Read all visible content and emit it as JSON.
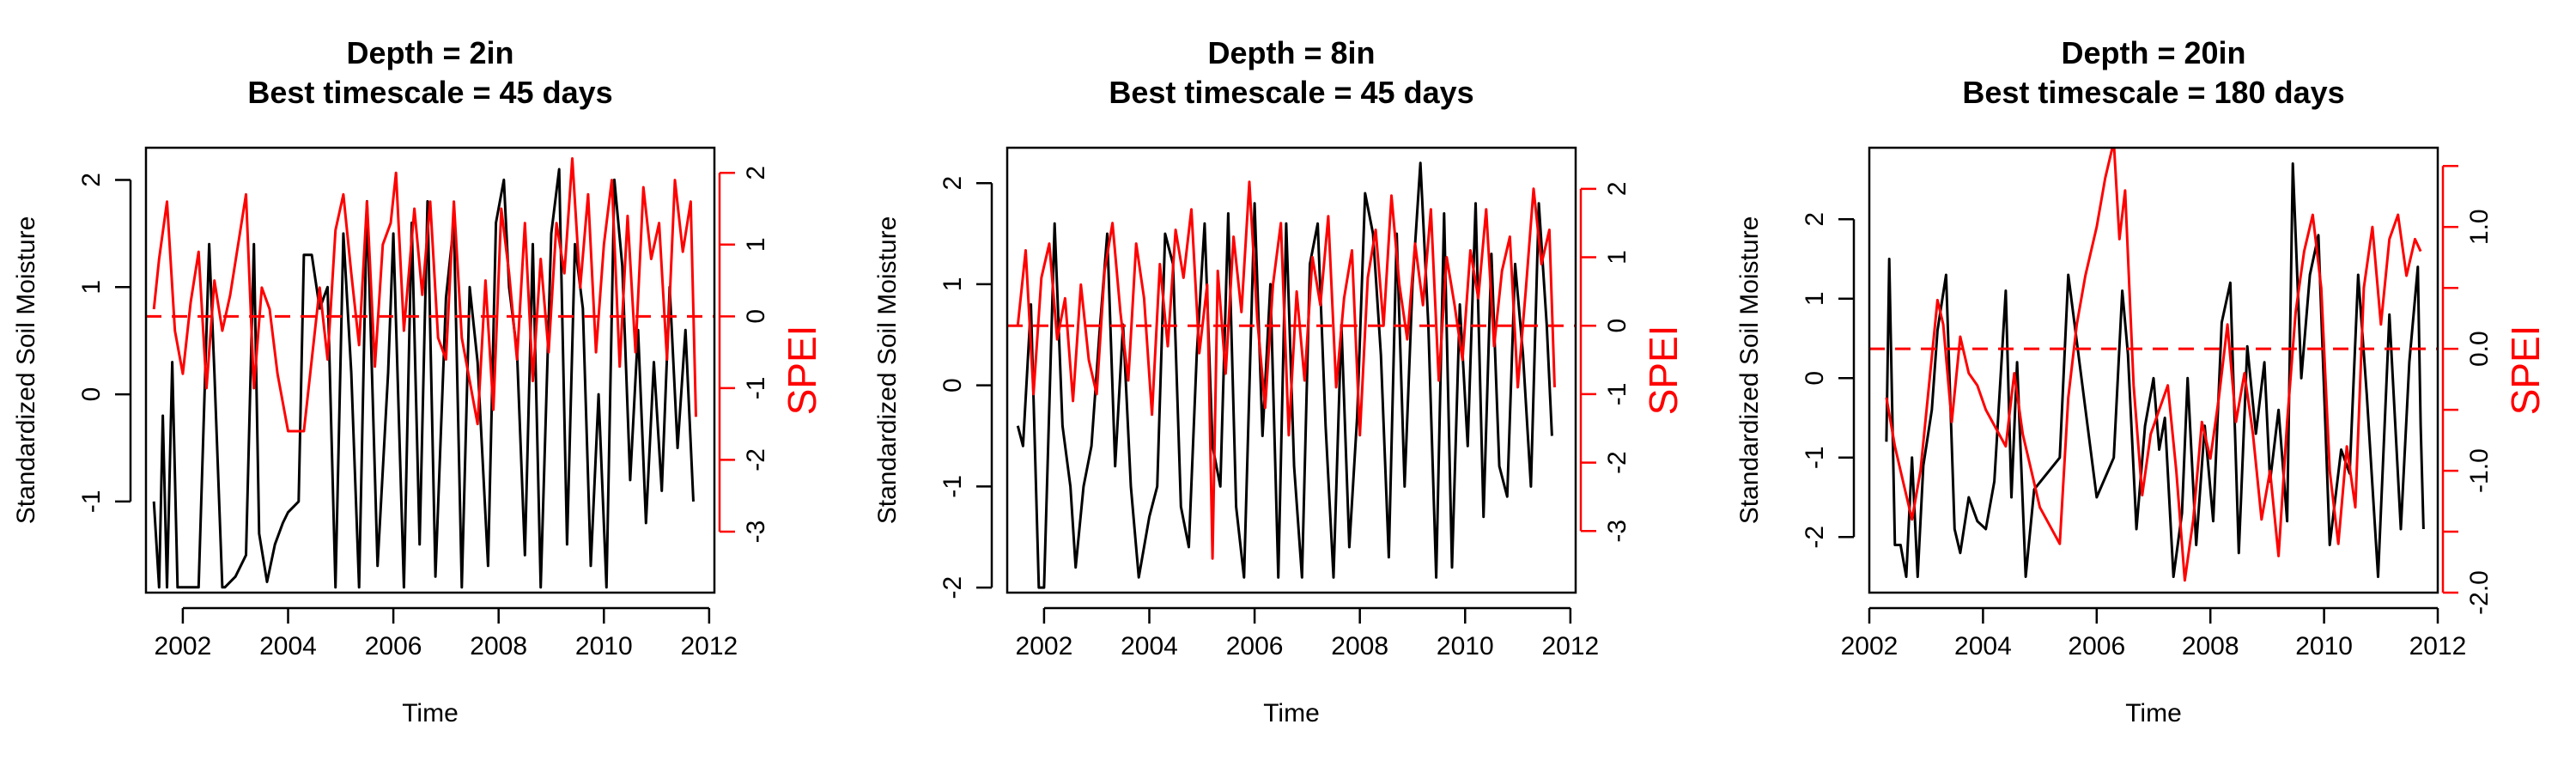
{
  "chart_data": [
    {
      "type": "line",
      "title": "Depth = 2in",
      "subtitle": "Best timescale = 45 days",
      "xlabel": "Time",
      "ylabel": "Standardized Soil Moisture",
      "y2label": "SPEI",
      "xlim": [
        2001.3,
        2012.1
      ],
      "ylim": [
        -1.85,
        2.3
      ],
      "y2lim": [
        -3.85,
        2.35
      ],
      "xticks": [
        2002,
        2004,
        2006,
        2008,
        2010,
        2012
      ],
      "yticks": [
        -1,
        0,
        1,
        2
      ],
      "y2ticks": [
        -3,
        -2,
        -1,
        0,
        1,
        2
      ],
      "hline_y2": 0,
      "colors": {
        "soil": "#000000",
        "spei": "#ff0000"
      },
      "series": [
        {
          "role": "soil",
          "x": [
            2001.45,
            2001.55,
            2001.62,
            2001.7,
            2001.8,
            2001.9,
            2002.0,
            2002.3,
            2002.5,
            2002.6,
            2002.75,
            2002.8,
            2003.0,
            2003.2,
            2003.35,
            2003.45,
            2003.6,
            2003.75,
            2003.9,
            2004.0,
            2004.2,
            2004.3,
            2004.45,
            2004.6,
            2004.75,
            2004.9,
            2005.05,
            2005.2,
            2005.35,
            2005.5,
            2005.7,
            2005.9,
            2006.0,
            2006.2,
            2006.35,
            2006.5,
            2006.65,
            2006.8,
            2007.0,
            2007.15,
            2007.3,
            2007.45,
            2007.6,
            2007.8,
            2007.95,
            2008.1,
            2008.2,
            2008.35,
            2008.5,
            2008.65,
            2008.8,
            2009.0,
            2009.15,
            2009.3,
            2009.45,
            2009.6,
            2009.75,
            2009.9,
            2010.05,
            2010.2,
            2010.35,
            2010.5,
            2010.65,
            2010.8,
            2010.95,
            2011.1,
            2011.25,
            2011.4,
            2011.55,
            2011.7
          ],
          "y": [
            -1.0,
            -1.8,
            -0.2,
            -1.8,
            0.3,
            -1.8,
            -1.8,
            -1.8,
            1.4,
            0.2,
            -1.8,
            -1.8,
            -1.7,
            -1.5,
            1.4,
            -1.3,
            -1.75,
            -1.4,
            -1.2,
            -1.1,
            -1.0,
            1.3,
            1.3,
            0.8,
            1.0,
            -1.8,
            1.5,
            0.2,
            -1.8,
            1.8,
            -1.6,
            0.2,
            1.5,
            -1.8,
            1.6,
            -1.4,
            1.8,
            -1.7,
            0.9,
            1.6,
            -1.8,
            1.0,
            0.3,
            -1.6,
            1.6,
            2.0,
            1.0,
            0.4,
            -1.5,
            1.4,
            -1.8,
            1.5,
            2.1,
            -1.4,
            1.4,
            0.8,
            -1.6,
            0.0,
            -1.8,
            2.0,
            1.2,
            -0.8,
            0.6,
            -1.2,
            0.3,
            -0.9,
            1.0,
            -0.5,
            0.6,
            -1.0
          ]
        },
        {
          "role": "spei",
          "x": [
            2001.45,
            2001.55,
            2001.7,
            2001.85,
            2002.0,
            2002.15,
            2002.3,
            2002.45,
            2002.6,
            2002.75,
            2002.9,
            2003.05,
            2003.2,
            2003.35,
            2003.5,
            2003.65,
            2003.8,
            2004.0,
            2004.3,
            2004.6,
            2004.75,
            2004.9,
            2005.05,
            2005.2,
            2005.35,
            2005.5,
            2005.65,
            2005.8,
            2005.95,
            2006.05,
            2006.2,
            2006.4,
            2006.55,
            2006.7,
            2006.85,
            2007.0,
            2007.15,
            2007.3,
            2007.45,
            2007.6,
            2007.75,
            2007.9,
            2008.05,
            2008.2,
            2008.35,
            2008.5,
            2008.65,
            2008.8,
            2008.95,
            2009.1,
            2009.25,
            2009.4,
            2009.55,
            2009.7,
            2009.85,
            2010.0,
            2010.15,
            2010.3,
            2010.45,
            2010.6,
            2010.75,
            2010.9,
            2011.05,
            2011.2,
            2011.35,
            2011.5,
            2011.65,
            2011.75
          ],
          "y": [
            0.1,
            0.8,
            1.6,
            -0.2,
            -0.8,
            0.2,
            0.9,
            -1.0,
            0.5,
            -0.2,
            0.3,
            1.0,
            1.7,
            -1.0,
            0.4,
            0.1,
            -0.8,
            -1.6,
            -1.6,
            0.4,
            -0.6,
            1.2,
            1.7,
            0.6,
            -0.4,
            1.6,
            -0.7,
            1.0,
            1.3,
            2.0,
            -0.2,
            1.5,
            0.3,
            1.6,
            -0.3,
            -0.6,
            1.6,
            -0.3,
            -0.9,
            -1.5,
            0.5,
            -1.3,
            1.5,
            0.6,
            -0.6,
            1.3,
            -0.9,
            0.8,
            -0.5,
            1.3,
            0.6,
            2.2,
            0.4,
            1.7,
            -0.5,
            1.0,
            1.9,
            -0.7,
            1.4,
            -0.5,
            1.8,
            0.8,
            1.3,
            -0.6,
            1.9,
            0.9,
            1.6,
            -1.4
          ]
        }
      ]
    },
    {
      "type": "line",
      "title": "Depth = 8in",
      "subtitle": "Best timescale = 45 days",
      "xlabel": "Time",
      "ylabel": "Standardized Soil Moisture",
      "y2label": "SPEI",
      "xlim": [
        2001.3,
        2012.1
      ],
      "ylim": [
        -2.05,
        2.35
      ],
      "y2lim": [
        -3.9,
        2.6
      ],
      "xticks": [
        2002,
        2004,
        2006,
        2008,
        2010,
        2012
      ],
      "yticks": [
        -2,
        -1,
        0,
        1,
        2
      ],
      "y2ticks": [
        -3,
        -2,
        -1,
        0,
        1,
        2
      ],
      "hline_y2": 0,
      "colors": {
        "soil": "#000000",
        "spei": "#ff0000"
      },
      "series": [
        {
          "role": "soil",
          "x": [
            2001.5,
            2001.6,
            2001.75,
            2001.9,
            2002.0,
            2002.2,
            2002.35,
            2002.5,
            2002.6,
            2002.75,
            2002.9,
            2003.05,
            2003.2,
            2003.35,
            2003.5,
            2003.65,
            2003.8,
            2004.0,
            2004.15,
            2004.3,
            2004.45,
            2004.6,
            2004.75,
            2004.9,
            2005.05,
            2005.2,
            2005.35,
            2005.5,
            2005.65,
            2005.8,
            2006.0,
            2006.15,
            2006.3,
            2006.45,
            2006.6,
            2006.75,
            2006.9,
            2007.05,
            2007.2,
            2007.35,
            2007.5,
            2007.65,
            2007.8,
            2007.95,
            2008.1,
            2008.25,
            2008.4,
            2008.55,
            2008.7,
            2008.85,
            2009.0,
            2009.15,
            2009.3,
            2009.45,
            2009.6,
            2009.75,
            2009.9,
            2010.05,
            2010.2,
            2010.35,
            2010.5,
            2010.65,
            2010.8,
            2010.95,
            2011.1,
            2011.25,
            2011.4,
            2011.55,
            2011.65
          ],
          "y": [
            -0.4,
            -0.6,
            0.8,
            -2.0,
            -2.0,
            1.6,
            -0.4,
            -1.0,
            -1.8,
            -1.0,
            -0.6,
            0.5,
            1.5,
            -0.8,
            0.6,
            -1.0,
            -1.9,
            -1.3,
            -1.0,
            1.5,
            1.2,
            -1.2,
            -1.6,
            0.3,
            1.6,
            -0.6,
            -1.0,
            1.7,
            -1.2,
            -1.9,
            1.8,
            -0.5,
            1.0,
            -1.9,
            1.6,
            -0.8,
            -1.9,
            1.2,
            1.6,
            -0.4,
            -1.9,
            0.6,
            -1.6,
            -0.3,
            1.9,
            1.5,
            0.3,
            -1.7,
            1.5,
            -1.0,
            1.0,
            2.2,
            0.6,
            -1.9,
            1.7,
            -1.8,
            0.8,
            -0.6,
            1.8,
            -1.3,
            1.3,
            -0.8,
            -1.1,
            1.2,
            0.3,
            -1.0,
            1.8,
            0.6,
            -0.5
          ]
        },
        {
          "role": "spei",
          "x": [
            2001.5,
            2001.65,
            2001.8,
            2001.95,
            2002.1,
            2002.25,
            2002.4,
            2002.55,
            2002.7,
            2002.85,
            2003.0,
            2003.15,
            2003.3,
            2003.45,
            2003.6,
            2003.75,
            2003.9,
            2004.05,
            2004.2,
            2004.35,
            2004.5,
            2004.65,
            2004.8,
            2004.95,
            2005.1,
            2005.2,
            2005.3,
            2005.45,
            2005.6,
            2005.75,
            2005.9,
            2006.05,
            2006.2,
            2006.35,
            2006.5,
            2006.65,
            2006.8,
            2006.95,
            2007.1,
            2007.25,
            2007.4,
            2007.55,
            2007.7,
            2007.85,
            2008.0,
            2008.15,
            2008.3,
            2008.45,
            2008.6,
            2008.75,
            2008.9,
            2009.05,
            2009.2,
            2009.35,
            2009.5,
            2009.65,
            2009.8,
            2009.95,
            2010.1,
            2010.25,
            2010.4,
            2010.55,
            2010.7,
            2010.85,
            2011.0,
            2011.15,
            2011.3,
            2011.45,
            2011.6,
            2011.7
          ],
          "y": [
            0.0,
            1.1,
            -1.0,
            0.7,
            1.2,
            -0.2,
            0.4,
            -1.1,
            0.6,
            -0.5,
            -1.0,
            0.8,
            1.5,
            0.2,
            -0.8,
            1.2,
            0.4,
            -1.3,
            0.9,
            -0.3,
            1.4,
            0.7,
            1.7,
            -0.4,
            0.6,
            -3.4,
            0.8,
            -0.7,
            1.3,
            0.2,
            2.1,
            0.1,
            -1.2,
            0.6,
            1.5,
            -1.6,
            0.5,
            -0.8,
            1.0,
            0.3,
            1.6,
            -0.9,
            0.4,
            1.1,
            -1.6,
            0.7,
            1.4,
            0.0,
            1.9,
            0.6,
            -0.2,
            1.2,
            0.3,
            1.7,
            -0.8,
            1.0,
            0.3,
            -0.5,
            1.1,
            0.4,
            1.7,
            -0.3,
            0.8,
            1.3,
            -0.9,
            0.5,
            2.0,
            0.9,
            1.4,
            -0.9
          ]
        }
      ]
    },
    {
      "type": "line",
      "title": "Depth = 20in",
      "subtitle": "Best timescale = 180 days",
      "xlabel": "Time",
      "ylabel": "Standardized Soil Moisture",
      "y2label": "SPEI",
      "xlim": [
        2002.0,
        2012.0
      ],
      "ylim": [
        -2.7,
        2.9
      ],
      "y2lim": [
        -2.0,
        1.65
      ],
      "xticks": [
        2002,
        2004,
        2006,
        2008,
        2010,
        2012
      ],
      "yticks": [
        -2,
        -1,
        0,
        1,
        2
      ],
      "y2ticks": [
        -2.0,
        -1.5,
        -1.0,
        -0.5,
        0.0,
        0.5,
        1.0,
        1.5
      ],
      "y2ticklabels": [
        "-2.0",
        "",
        "-1.0",
        "",
        "0.0",
        "",
        "1.0",
        ""
      ],
      "hline_y2": 0,
      "colors": {
        "soil": "#000000",
        "spei": "#ff0000"
      },
      "series": [
        {
          "role": "soil",
          "x": [
            2002.3,
            2002.35,
            2002.45,
            2002.55,
            2002.65,
            2002.75,
            2002.85,
            2002.95,
            2003.1,
            2003.2,
            2003.35,
            2003.5,
            2003.6,
            2003.75,
            2003.9,
            2004.05,
            2004.2,
            2004.4,
            2004.5,
            2004.6,
            2004.75,
            2004.9,
            2005.35,
            2005.5,
            2006.0,
            2006.3,
            2006.45,
            2006.55,
            2006.7,
            2006.85,
            2007.0,
            2007.1,
            2007.2,
            2007.35,
            2007.5,
            2007.6,
            2007.75,
            2007.9,
            2008.05,
            2008.2,
            2008.35,
            2008.5,
            2008.65,
            2008.8,
            2008.95,
            2009.05,
            2009.2,
            2009.35,
            2009.45,
            2009.6,
            2009.75,
            2009.9,
            2010.1,
            2010.3,
            2010.45,
            2010.6,
            2010.75,
            2010.95,
            2011.15,
            2011.35,
            2011.5,
            2011.65,
            2011.7,
            2011.75
          ],
          "y": [
            -0.8,
            1.5,
            -2.1,
            -2.1,
            -2.5,
            -1.0,
            -2.5,
            -1.1,
            -0.4,
            0.6,
            1.3,
            -1.9,
            -2.2,
            -1.5,
            -1.8,
            -1.9,
            -1.3,
            1.1,
            -1.5,
            0.2,
            -2.5,
            -1.4,
            -1.0,
            1.3,
            -1.5,
            -1.0,
            1.1,
            0.3,
            -1.9,
            -0.6,
            0.0,
            -0.9,
            -0.5,
            -2.5,
            -1.7,
            0.0,
            -2.1,
            -0.6,
            -1.8,
            0.7,
            1.2,
            -2.2,
            0.4,
            -0.7,
            0.2,
            -1.3,
            -0.4,
            -1.8,
            2.7,
            0.0,
            1.3,
            1.8,
            -2.1,
            -0.9,
            -1.2,
            1.3,
            -0.2,
            -2.5,
            0.8,
            -1.9,
            0.2,
            1.4,
            -0.6,
            -1.9
          ]
        },
        {
          "role": "spei",
          "x": [
            2002.3,
            2002.45,
            2002.6,
            2002.75,
            2002.9,
            2003.05,
            2003.2,
            2003.3,
            2003.45,
            2003.6,
            2003.75,
            2003.9,
            2004.05,
            2004.4,
            2004.55,
            2004.7,
            2004.85,
            2005.0,
            2005.35,
            2005.5,
            2005.65,
            2005.8,
            2006.0,
            2006.15,
            2006.3,
            2006.4,
            2006.5,
            2006.65,
            2006.8,
            2006.95,
            2007.1,
            2007.25,
            2007.4,
            2007.55,
            2007.7,
            2007.85,
            2008.0,
            2008.15,
            2008.3,
            2008.45,
            2008.6,
            2008.75,
            2008.9,
            2009.05,
            2009.2,
            2009.35,
            2009.5,
            2009.65,
            2009.8,
            2009.95,
            2010.1,
            2010.25,
            2010.4,
            2010.55,
            2010.7,
            2010.85,
            2011.0,
            2011.15,
            2011.3,
            2011.45,
            2011.6,
            2011.7
          ],
          "y": [
            -0.4,
            -0.8,
            -1.1,
            -1.4,
            -1.0,
            -0.3,
            0.4,
            0.2,
            -0.6,
            0.1,
            -0.2,
            -0.3,
            -0.5,
            -0.8,
            -0.2,
            -0.7,
            -1.0,
            -1.3,
            -1.6,
            -0.4,
            0.2,
            0.6,
            1.0,
            1.4,
            1.7,
            0.9,
            1.3,
            -0.3,
            -1.2,
            -0.7,
            -0.5,
            -0.3,
            -1.0,
            -1.9,
            -1.4,
            -0.6,
            -0.9,
            -0.4,
            0.2,
            -0.6,
            -0.2,
            -0.7,
            -1.4,
            -1.0,
            -1.7,
            -0.6,
            0.3,
            0.8,
            1.1,
            0.5,
            -1.0,
            -1.6,
            -0.8,
            -1.3,
            0.5,
            1.0,
            0.2,
            0.9,
            1.1,
            0.6,
            0.9,
            0.8
          ]
        }
      ]
    }
  ]
}
